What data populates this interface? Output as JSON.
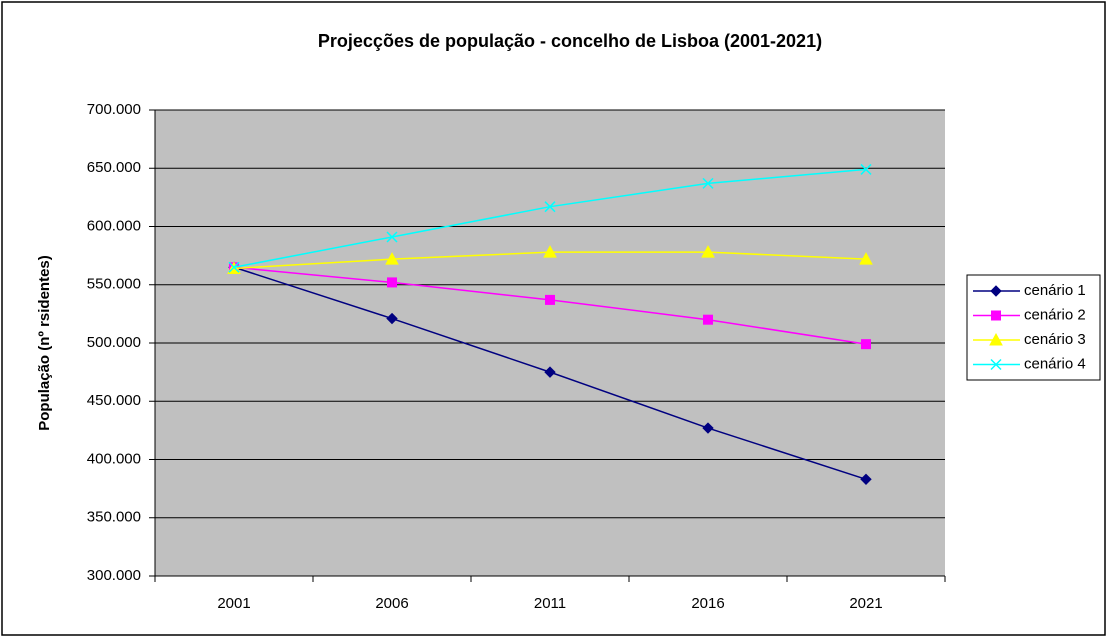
{
  "chart_data": {
    "type": "line",
    "title": "Projecções de população - concelho de Lisboa (2001-2021)",
    "y_label": "População (nº rsidentes)",
    "categories": [
      "2001",
      "2006",
      "2011",
      "2016",
      "2021"
    ],
    "series": [
      {
        "name": "cenário 1",
        "color": "#000080",
        "marker": "diamond",
        "values": [
          565000,
          521000,
          475000,
          427000,
          383000
        ]
      },
      {
        "name": "cenário 2",
        "color": "#ff00ff",
        "marker": "square",
        "values": [
          565000,
          552000,
          537000,
          520000,
          499000
        ]
      },
      {
        "name": "cenário 3",
        "color": "#ffff00",
        "marker": "triangle",
        "values": [
          564000,
          572000,
          578000,
          578000,
          572000
        ]
      },
      {
        "name": "cenário 4",
        "color": "#00ffff",
        "marker": "x",
        "values": [
          565000,
          591000,
          617000,
          637000,
          649000
        ]
      }
    ],
    "ylim": [
      300000,
      700000
    ],
    "yticks": [
      {
        "value": 300000,
        "label": "300.000"
      },
      {
        "value": 350000,
        "label": "350.000"
      },
      {
        "value": 400000,
        "label": "400.000"
      },
      {
        "value": 450000,
        "label": "450.000"
      },
      {
        "value": 500000,
        "label": "500.000"
      },
      {
        "value": 550000,
        "label": "550.000"
      },
      {
        "value": 600000,
        "label": "600.000"
      },
      {
        "value": 650000,
        "label": "650.000"
      },
      {
        "value": 700000,
        "label": "700.000"
      }
    ],
    "grid": true,
    "legend": "right"
  }
}
